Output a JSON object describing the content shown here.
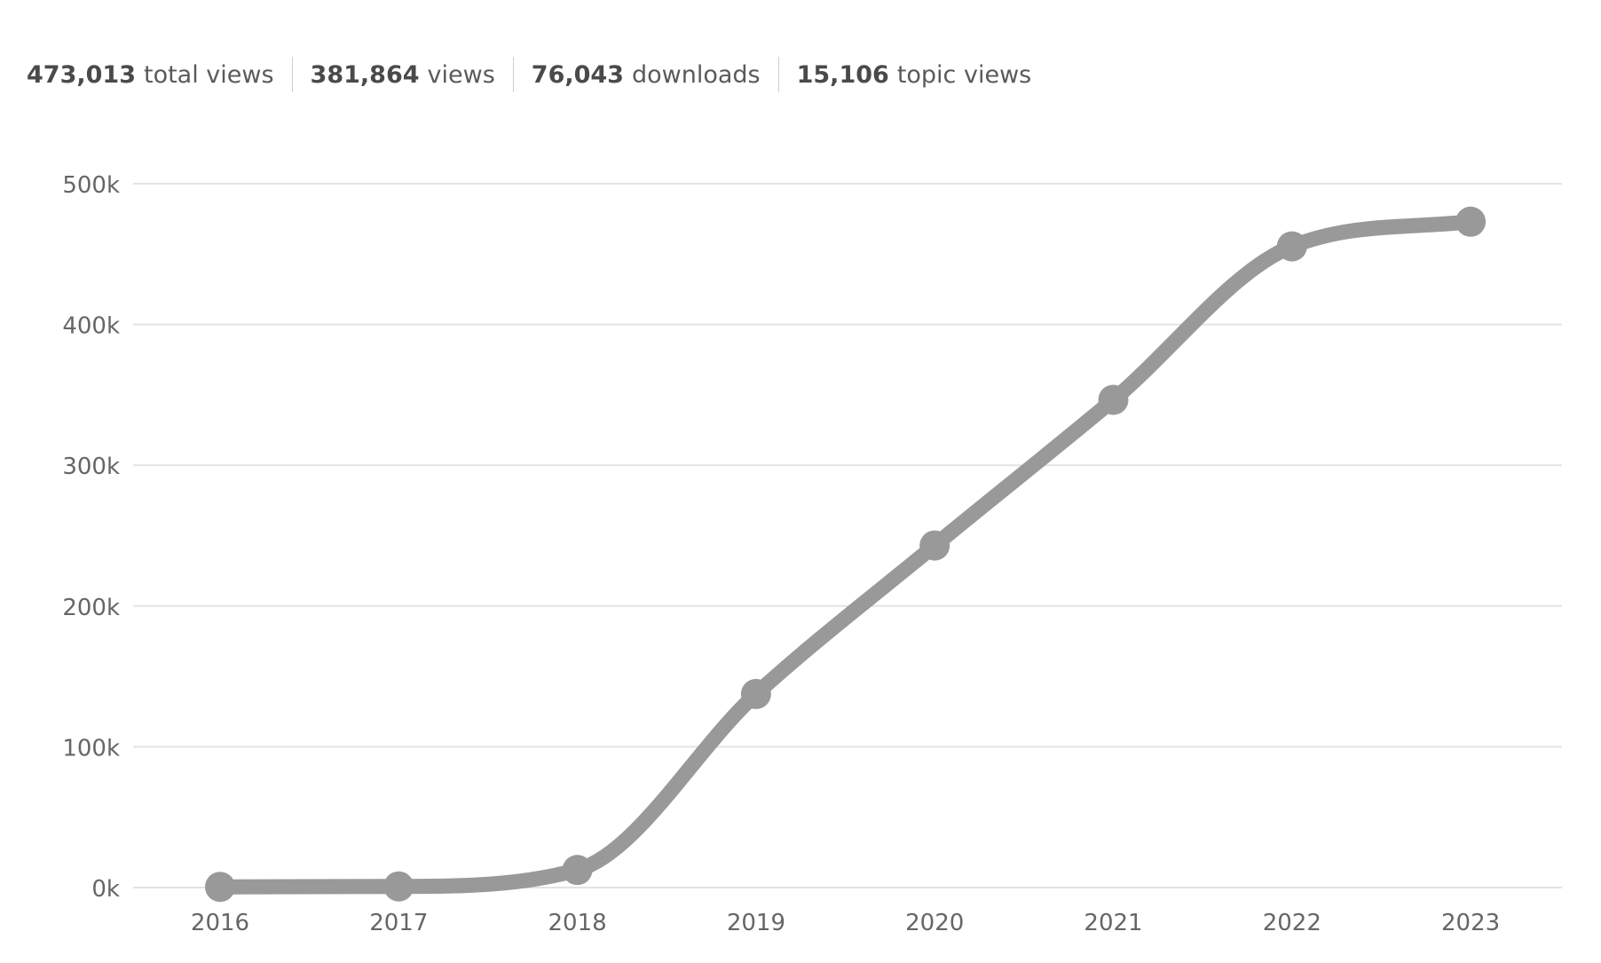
{
  "stats": [
    {
      "value": "473,013",
      "label": "total views"
    },
    {
      "value": "381,864",
      "label": "views"
    },
    {
      "value": "76,043",
      "label": "downloads"
    },
    {
      "value": "15,106",
      "label": "topic views"
    }
  ],
  "colors": {
    "line": "#999999",
    "grid": "#e3e3e3",
    "tick_text": "#666666"
  },
  "chart_data": {
    "type": "line",
    "title": "",
    "xlabel": "",
    "ylabel": "",
    "categories": [
      "2016",
      "2017",
      "2018",
      "2019",
      "2020",
      "2021",
      "2022",
      "2023"
    ],
    "values": [
      500,
      800,
      12500,
      137500,
      243000,
      346500,
      455500,
      473013
    ],
    "ylim": [
      0,
      500000
    ],
    "yticks": [
      0,
      100000,
      200000,
      300000,
      400000,
      500000
    ],
    "ytick_labels": [
      "0k",
      "100k",
      "200k",
      "300k",
      "400k",
      "500k"
    ],
    "grid": true,
    "legend": "none",
    "smooth": true
  }
}
